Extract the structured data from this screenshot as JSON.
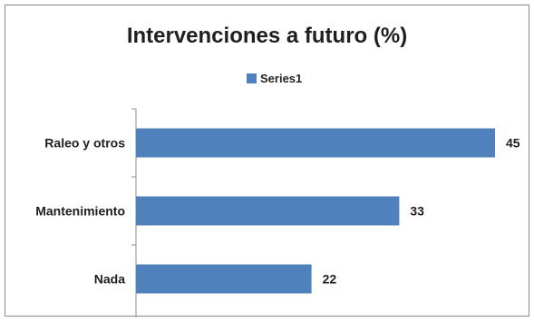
{
  "chart_data": {
    "type": "bar",
    "orientation": "horizontal",
    "title": "Intervenciones a futuro (%)",
    "categories": [
      "Raleo y otros",
      "Mantenimiento",
      "Nada"
    ],
    "series": [
      {
        "name": "Series1",
        "values": [
          45,
          33,
          22
        ],
        "color": "#4f81bd"
      }
    ],
    "data_labels": true,
    "legend_position": "top",
    "xlim": [
      0,
      45
    ],
    "grid": false
  }
}
